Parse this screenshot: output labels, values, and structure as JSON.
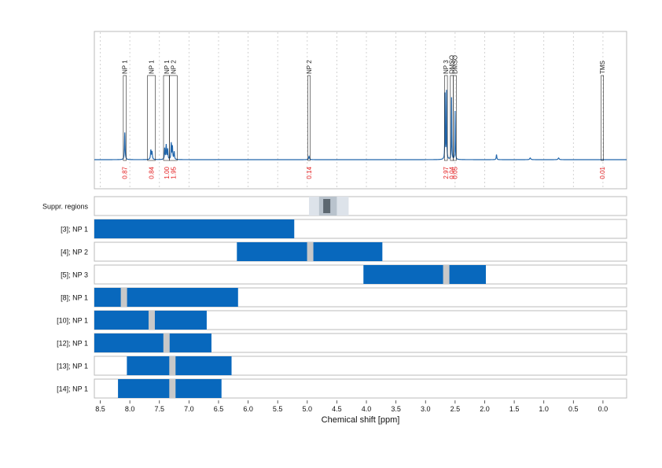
{
  "chart_data": {
    "type": "spectrum-with-region-tracks",
    "xlabel": "Chemical shift [ppm]",
    "xlim": [
      8.6,
      -0.4
    ],
    "x_reversed": true,
    "xticks": [
      "8.5",
      "8.0",
      "7.5",
      "7.0",
      "6.5",
      "6.0",
      "5.5",
      "5.0",
      "4.5",
      "4.0",
      "3.5",
      "3.0",
      "2.5",
      "2.0",
      "1.5",
      "1.0",
      "0.5",
      "0.0"
    ],
    "colors": {
      "spectrum": "#2166ac",
      "region_bar": "#0868bd",
      "region_gap": "#c8c8c8",
      "integral_label": "#e31a1c",
      "grid": "#c8c8c8",
      "panel_border": "#bbbbbb",
      "suppr_outer": "#dde3ea",
      "suppr_mid": "#b9c3cd",
      "suppr_inner": "#5c6770"
    },
    "peak_boxes": [
      {
        "label": "NP 1",
        "from": 8.11,
        "to": 8.06,
        "integral": "0.87"
      },
      {
        "label": "NP 1",
        "from": 7.7,
        "to": 7.57,
        "integral": "0.84"
      },
      {
        "label": "NP 1",
        "from": 7.43,
        "to": 7.33,
        "integral": "1.00"
      },
      {
        "label": "NP 2",
        "from": 7.33,
        "to": 7.2,
        "integral": "1.95"
      },
      {
        "label": "NP 2",
        "from": 4.99,
        "to": 4.95,
        "integral": "0.14"
      },
      {
        "label": "NP 3",
        "from": 2.68,
        "to": 2.63,
        "integral": "2.97"
      },
      {
        "label": "DMSO",
        "from": 2.58,
        "to": 2.53,
        "integral": "0.04"
      },
      {
        "label": "DMSO",
        "from": 2.53,
        "to": 2.48,
        "integral": "0.05"
      },
      {
        "label": "TMS",
        "from": 0.03,
        "to": -0.01,
        "integral": "0.01"
      }
    ],
    "spectrum_peaks": [
      {
        "x": 8.085,
        "h": 0.32,
        "w": 0.006
      },
      {
        "x": 7.645,
        "h": 0.11,
        "w": 0.007
      },
      {
        "x": 7.625,
        "h": 0.09,
        "w": 0.007
      },
      {
        "x": 7.41,
        "h": 0.13,
        "w": 0.006
      },
      {
        "x": 7.385,
        "h": 0.17,
        "w": 0.006
      },
      {
        "x": 7.36,
        "h": 0.12,
        "w": 0.006
      },
      {
        "x": 7.3,
        "h": 0.19,
        "w": 0.006
      },
      {
        "x": 7.28,
        "h": 0.15,
        "w": 0.006
      },
      {
        "x": 7.25,
        "h": 0.09,
        "w": 0.006
      },
      {
        "x": 4.97,
        "h": 0.04,
        "w": 0.008
      },
      {
        "x": 2.67,
        "h": 0.77,
        "w": 0.004
      },
      {
        "x": 2.645,
        "h": 0.8,
        "w": 0.004
      },
      {
        "x": 2.56,
        "h": 0.73,
        "w": 0.004
      },
      {
        "x": 2.5,
        "h": 0.57,
        "w": 0.004
      },
      {
        "x": 1.8,
        "h": 0.06,
        "w": 0.006
      },
      {
        "x": 1.23,
        "h": 0.02,
        "w": 0.01
      },
      {
        "x": 0.75,
        "h": 0.02,
        "w": 0.01
      }
    ],
    "suppression_track": {
      "label": "Suppr. regions",
      "bands": [
        {
          "from": 4.97,
          "to": 4.3,
          "level": "outer"
        },
        {
          "from": 4.8,
          "to": 4.5,
          "level": "mid"
        },
        {
          "from": 4.73,
          "to": 4.61,
          "level": "inner"
        }
      ]
    },
    "region_tracks": [
      {
        "label": "[3]; NP 1",
        "from": 8.6,
        "to": 5.22,
        "gaps": []
      },
      {
        "label": "[4]; NP 2",
        "from": 6.19,
        "to": 3.73,
        "gaps": [
          4.95
        ]
      },
      {
        "label": "[5]; NP 3",
        "from": 4.05,
        "to": 1.98,
        "gaps": [
          2.65
        ]
      },
      {
        "label": "[8]; NP 1",
        "from": 8.6,
        "to": 6.17,
        "gaps": [
          8.1
        ]
      },
      {
        "label": "[10]; NP 1",
        "from": 8.6,
        "to": 6.7,
        "gaps": [
          7.63
        ]
      },
      {
        "label": "[12]; NP 1",
        "from": 8.6,
        "to": 6.62,
        "gaps": [
          7.38
        ]
      },
      {
        "label": "[13]; NP 1",
        "from": 8.05,
        "to": 6.28,
        "gaps": [
          7.28
        ]
      },
      {
        "label": "[14]; NP 1",
        "from": 8.2,
        "to": 6.45,
        "gaps": [
          7.28
        ]
      }
    ]
  }
}
